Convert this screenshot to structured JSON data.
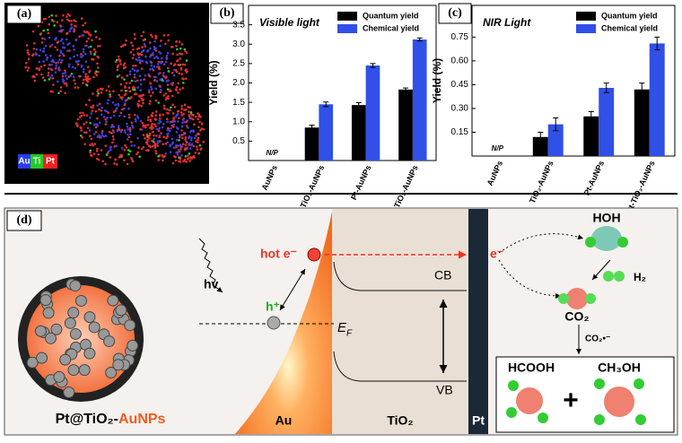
{
  "panels": {
    "a": "(a)",
    "b": "(b)",
    "c": "(c)",
    "d": "(d)"
  },
  "map_legend": [
    "Au",
    "Ti",
    "Pt"
  ],
  "chart_data": [
    {
      "type": "bar",
      "title": "Visible light",
      "y_label": "Yield (%)",
      "categories": [
        "AuNPs",
        "TiO₂-AuNPs",
        "Pt-AuNPs",
        "Pt-TiO₂-AuNPs"
      ],
      "annotation": "N/P",
      "series": [
        {
          "name": "Quantum yield",
          "color": "#000000",
          "values": [
            null,
            0.85,
            1.43,
            1.83
          ],
          "errors": [
            null,
            0.06,
            0.06,
            0.04
          ]
        },
        {
          "name": "Chemical yield",
          "color": "#3050e8",
          "values": [
            null,
            1.45,
            2.45,
            3.12
          ],
          "errors": [
            null,
            0.06,
            0.05,
            0.04
          ]
        }
      ],
      "ylim": [
        0,
        4.0
      ],
      "yticks": [
        0.5,
        {
          "value": 1,
          "label": "1.0"
        },
        1.5,
        {
          "value": 2,
          "label": "2.0"
        },
        2.5,
        {
          "value": 3,
          "label": "3.0"
        },
        3.5
      ],
      "legend": "upper right"
    },
    {
      "type": "bar",
      "title": "NIR Light",
      "y_label": "Yield (%)",
      "categories": [
        "AuNPs",
        "TiO₂-AuNPs",
        "Pt-AuNPs",
        "Pt-TiO₂-AuNPs"
      ],
      "annotation": "N/P",
      "series": [
        {
          "name": "Quantum yield",
          "color": "#000000",
          "values": [
            null,
            0.12,
            0.25,
            0.42
          ],
          "errors": [
            null,
            0.03,
            0.03,
            0.04
          ]
        },
        {
          "name": "Chemical yield",
          "color": "#3050e8",
          "values": [
            null,
            0.2,
            0.43,
            0.71
          ],
          "errors": [
            null,
            0.04,
            0.03,
            0.04
          ]
        }
      ],
      "ylim": [
        0,
        0.95
      ],
      "yticks": [
        0.15,
        {
          "value": 0.3,
          "label": "0.30"
        },
        0.45,
        {
          "value": 0.6,
          "label": "0.60"
        },
        0.75
      ],
      "legend": "upper right"
    }
  ],
  "diagram": {
    "hot_e": "hot e⁻",
    "hv": "hv",
    "h": "h⁺",
    "ef": "E",
    "ef_sub": "F",
    "cb": "CB",
    "vb": "VB",
    "au": "Au",
    "tio2": "TiO₂",
    "pt": "Pt",
    "e": "e⁻",
    "hoh": "HOH",
    "h2": "H₂",
    "co2": "CO₂",
    "co2_rad": "CO₂•⁻",
    "hcooh": "HCOOH",
    "ch3oh": "CH₃OH",
    "plus": "+",
    "np_label_a": "Pt@TiO₂-",
    "np_label_b": "AuNPs"
  }
}
